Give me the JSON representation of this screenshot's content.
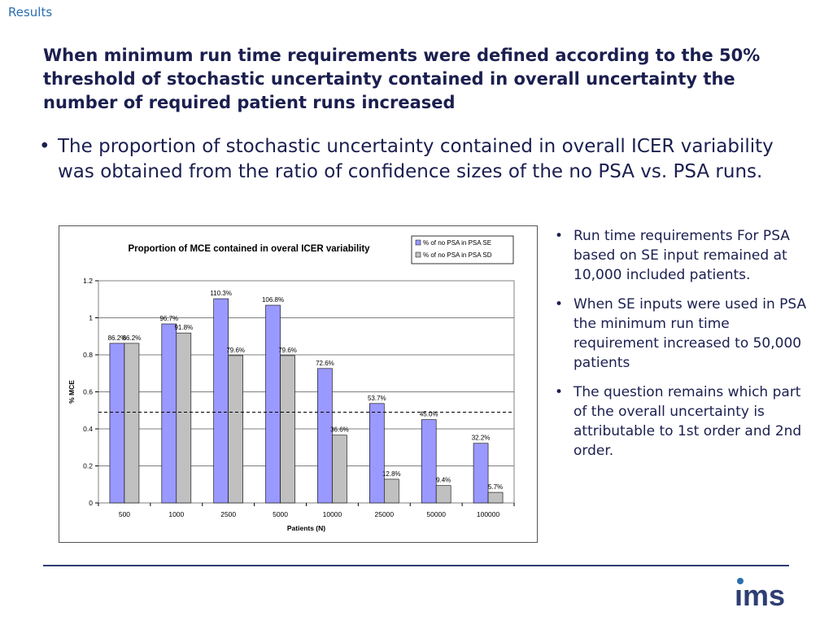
{
  "header": {
    "section_label": "Results",
    "headline": "When minimum run time requirements were defined according to the  50% threshold of stochastic uncertainty contained in overall uncertainty the number of required patient runs increased"
  },
  "main_bullet": "The proportion of stochastic uncertainty contained in overall ICER variability was obtained from the ratio of confidence sizes of the no PSA vs. PSA runs.",
  "side_bullets": [
    "Run time requirements For PSA based on SE input remained at 10,000 included patients.",
    "When SE inputs were used in PSA the minimum run time requirement increased to 50,000 patients",
    "The question remains which part of the overall uncertainty is attributable to 1st order and 2nd order."
  ],
  "logo": {
    "text": "ims",
    "color": "#2d3e73",
    "dot_color": "#2a6fb0"
  },
  "colors": {
    "series_se": "#9999ff",
    "series_sd": "#c0c0c0",
    "text": "#1b1f4f",
    "accent": "#2a6fb0"
  },
  "chart_data": {
    "type": "bar",
    "title": "Proportion of MCE contained in overal ICER variability",
    "xlabel": "Patients (N)",
    "ylabel": "% MCE",
    "categories": [
      "500",
      "1000",
      "2500",
      "5000",
      "10000",
      "25000",
      "50000",
      "100000"
    ],
    "series": [
      {
        "name": "% of no PSA in PSA SE",
        "values": [
          0.862,
          0.967,
          1.103,
          1.068,
          0.726,
          0.537,
          0.45,
          0.322
        ],
        "labels": [
          "86.2%",
          "96.7%",
          "110.3%",
          "106.8%",
          "72.6%",
          "53.7%",
          "45.0%",
          "32.2%"
        ],
        "color": "#9999ff"
      },
      {
        "name": "% of no PSA in PSA SD",
        "values": [
          0.862,
          0.918,
          0.796,
          0.796,
          0.366,
          0.128,
          0.094,
          0.057
        ],
        "labels": [
          "86.2%",
          "91.8%",
          "79.6%",
          "79.6%",
          "36.6%",
          "12.8%",
          "9.4%",
          "5.7%"
        ],
        "color": "#c0c0c0"
      }
    ],
    "ylim": [
      0,
      1.2
    ],
    "yticks": [
      "0",
      "0.2",
      "0.4",
      "0.6",
      "0.8",
      "1",
      "1.2"
    ],
    "threshold_line": 0.49,
    "grid": true,
    "legend_position": "top-right"
  }
}
